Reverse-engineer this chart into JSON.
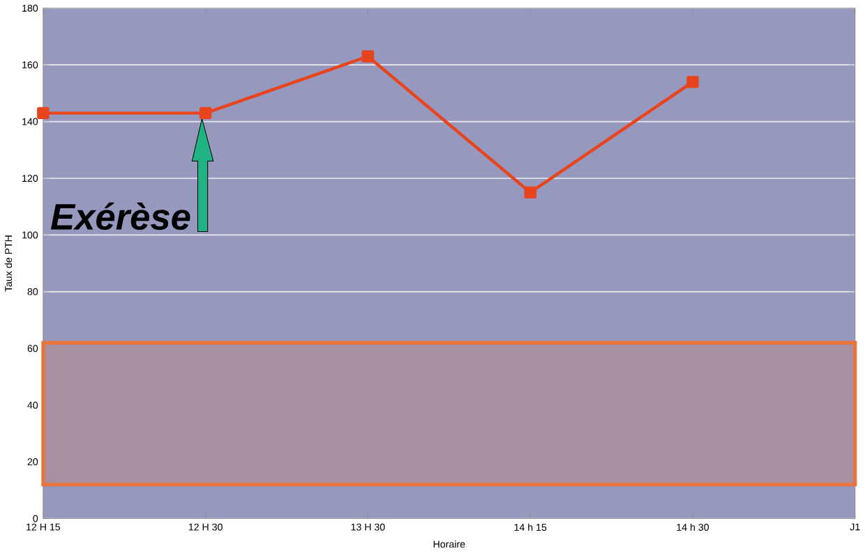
{
  "chart_data": {
    "type": "line",
    "xlabel": "Horaire",
    "ylabel": "Taux de PTH",
    "categories": [
      "12 H 15",
      "12 H 30",
      "13 H 30",
      "14 h 15",
      "14 h 30",
      "J1"
    ],
    "series": [
      {
        "color": "#e8441e",
        "values": [
          143,
          143,
          163,
          115,
          154,
          null
        ]
      }
    ],
    "ylim": [
      0,
      180
    ],
    "yticks": [
      0,
      20,
      40,
      60,
      80,
      100,
      120,
      140,
      160,
      180
    ],
    "grid": "y",
    "marker": "square",
    "line_style": "solid",
    "bands": [
      {
        "axis": "y",
        "from": 12,
        "to": 62,
        "color": "#e8743b"
      }
    ],
    "annotations": [
      {
        "text": "Exérèse",
        "x": "12 H 30",
        "y": 143
      }
    ]
  }
}
